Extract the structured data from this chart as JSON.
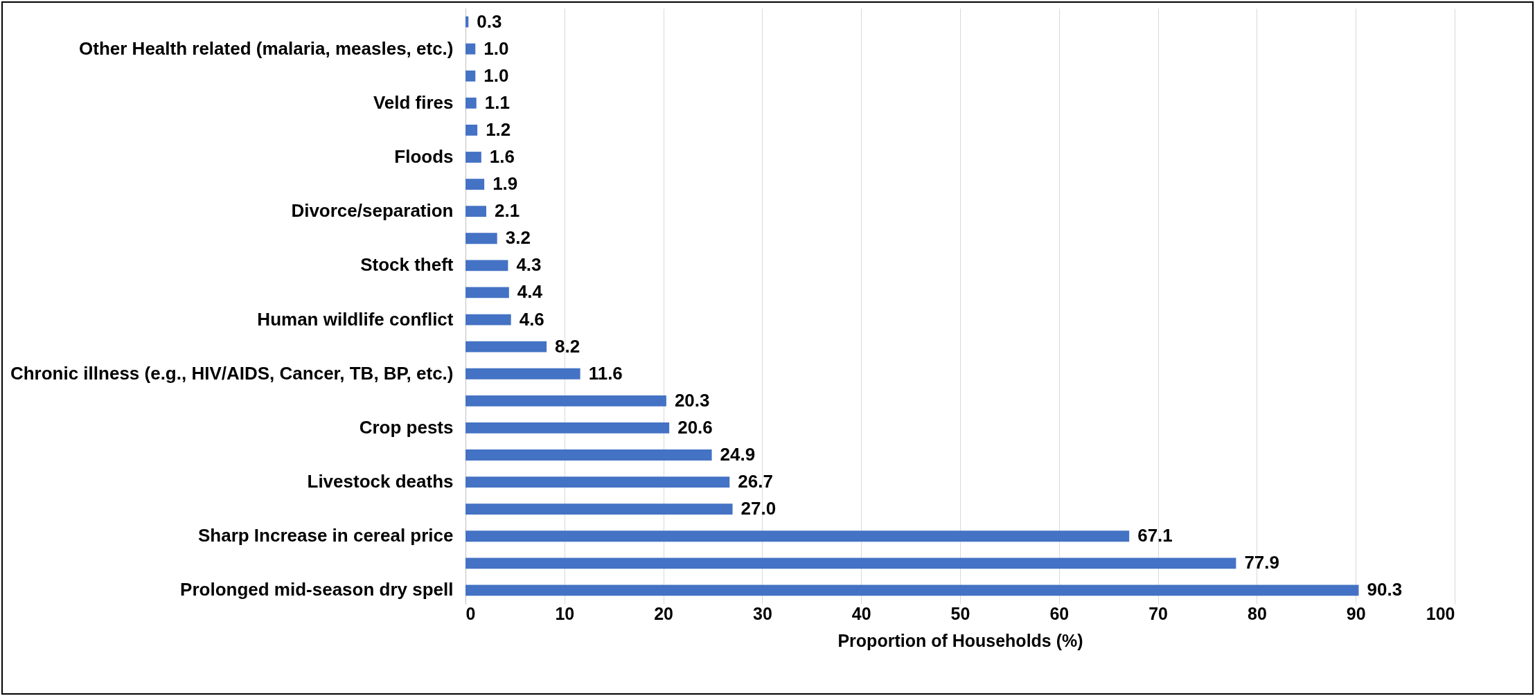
{
  "chart_data": {
    "type": "bar",
    "orientation": "horizontal",
    "xlabel": "Proportion of Households (%)",
    "categories": [
      null,
      "Other Health related (malaria, measles, etc.)",
      null,
      "Veld fires",
      null,
      "Floods",
      null,
      "Divorce/separation",
      null,
      "Stock theft",
      null,
      "Human wildlife conflict",
      null,
      "Chronic illness (e.g., HIV/AIDS, Cancer, TB, BP, etc.)",
      null,
      "Crop pests",
      null,
      "Livestock deaths",
      null,
      "Sharp Increase  in cereal price",
      null,
      "Prolonged mid-season dry spell"
    ],
    "values": [
      0.3,
      1.0,
      1.0,
      1.1,
      1.2,
      1.6,
      1.9,
      2.1,
      3.2,
      4.3,
      4.4,
      4.6,
      8.2,
      11.6,
      20.3,
      20.6,
      24.9,
      26.7,
      27.0,
      67.1,
      77.9,
      90.3
    ],
    "value_labels": [
      "0.3",
      "1.0",
      "1.0",
      "1.1",
      "1.2",
      "1.6",
      "1.9",
      "2.1",
      "3.2",
      "4.3",
      "4.4",
      "4.6",
      "8.2",
      "11.6",
      "20.3",
      "20.6",
      "24.9",
      "26.7",
      "27.0",
      "67.1",
      "77.9",
      "90.3"
    ],
    "color": "#4472c4",
    "xlim": [
      0,
      100
    ],
    "xticks": [
      0,
      10,
      20,
      30,
      40,
      50,
      60,
      70,
      80,
      90,
      100
    ],
    "grid": "x"
  }
}
